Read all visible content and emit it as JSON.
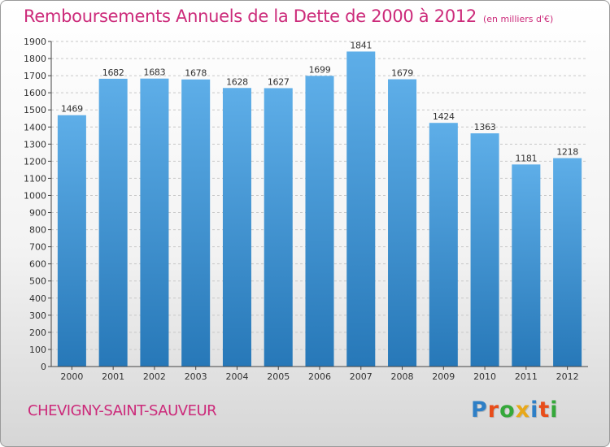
{
  "title": "Remboursements Annuels de la Dette de 2000 à 2012",
  "unit": "(en milliers d'€)",
  "commune": "CHEVIGNY-SAINT-SAUVEUR",
  "logo": {
    "text": "Proxiti",
    "letter_colors": [
      "#2e7fc6",
      "#e84d1a",
      "#35a83a",
      "#e8a81a",
      "#2e7fc6",
      "#e84d1a",
      "#35a83a"
    ]
  },
  "colors": {
    "title": "#cc2a7a",
    "bar_top": "#5eaee8",
    "bar_bottom": "#2778b8",
    "grid": "#c8c8c8"
  },
  "chart_data": {
    "type": "bar",
    "title": "Remboursements Annuels de la Dette de 2000 à 2012",
    "categories": [
      "2000",
      "2001",
      "2002",
      "2003",
      "2004",
      "2005",
      "2006",
      "2007",
      "2008",
      "2009",
      "2010",
      "2011",
      "2012"
    ],
    "values": [
      1469,
      1682,
      1683,
      1678,
      1628,
      1627,
      1699,
      1841,
      1679,
      1424,
      1363,
      1181,
      1218
    ],
    "ylim": [
      0,
      1900
    ],
    "yticks": [
      0,
      100,
      200,
      300,
      400,
      500,
      600,
      700,
      800,
      900,
      1000,
      1100,
      1200,
      1300,
      1400,
      1500,
      1600,
      1700,
      1800,
      1900
    ],
    "grid": "horizontal dashed"
  }
}
